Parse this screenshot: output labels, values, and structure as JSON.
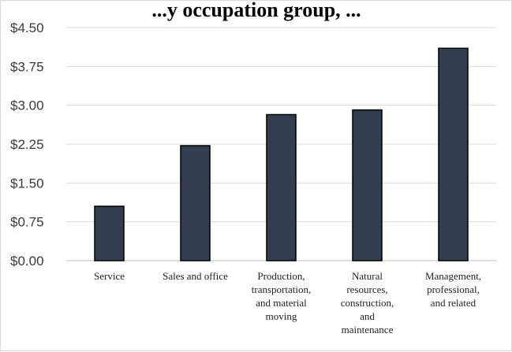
{
  "chart_data": {
    "type": "bar",
    "title": "...y occupation group, ...",
    "categories": [
      [
        "Service"
      ],
      [
        "Sales and office"
      ],
      [
        "Production,",
        "transportation,",
        "and material",
        "moving"
      ],
      [
        "Natural",
        "resources,",
        "construction,",
        "and",
        "maintenance"
      ],
      [
        "Management,",
        "professional,",
        "and related"
      ]
    ],
    "values": [
      1.05,
      2.22,
      2.82,
      2.91,
      4.1
    ],
    "ylim": [
      0,
      4.5
    ],
    "yticks": [
      "$0.00",
      "$0.75",
      "$1.50",
      "$2.25",
      "$3.00",
      "$3.75",
      "$4.50"
    ],
    "ytick_values": [
      0,
      0.75,
      1.5,
      2.25,
      3.0,
      3.75,
      4.5
    ],
    "grid": true,
    "bar_color": "#333d50",
    "bar_edge_color": "#000000"
  }
}
